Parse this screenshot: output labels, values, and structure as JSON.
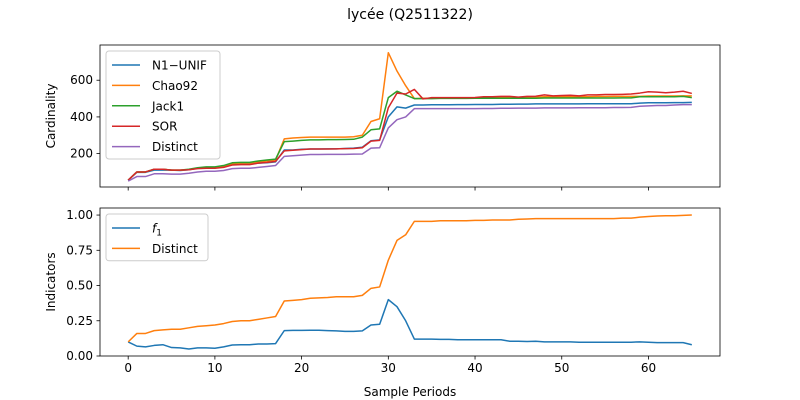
{
  "figure": {
    "title": "lycée (Q2511322)"
  },
  "chart_data": [
    {
      "type": "line",
      "title": "",
      "xlabel": "",
      "ylabel": "Cardinality",
      "xlim": [
        -3.25,
        68.25
      ],
      "ylim": [
        18,
        792
      ],
      "xticks": [
        0,
        10,
        20,
        30,
        40,
        50,
        60
      ],
      "xtick_labels": [
        "",
        "",
        "",
        "",
        "",
        "",
        ""
      ],
      "yticks": [
        200,
        400,
        600
      ],
      "ytick_labels": [
        "200",
        "400",
        "600"
      ],
      "grid": false,
      "legend_position": "upper-left",
      "series": [
        {
          "name": "N1−UNIF",
          "color": "#1f77b4",
          "values": [
            55,
            98,
            98,
            110,
            110,
            110,
            108,
            112,
            120,
            122,
            122,
            128,
            140,
            143,
            143,
            148,
            150,
            155,
            220,
            220,
            224,
            225,
            225,
            226,
            226,
            228,
            230,
            235,
            270,
            275,
            400,
            455,
            448,
            465,
            465,
            466,
            466,
            466,
            467,
            467,
            468,
            468,
            468,
            469,
            469,
            470,
            470,
            471,
            471,
            471,
            471,
            471,
            471,
            472,
            472,
            472,
            472,
            472,
            472,
            475,
            477,
            477,
            477,
            478,
            478,
            479
          ]
        },
        {
          "name": "Chao92",
          "color": "#ff7f0e",
          "values": [
            55,
            100,
            100,
            115,
            115,
            110,
            110,
            113,
            120,
            125,
            125,
            130,
            145,
            148,
            148,
            155,
            160,
            165,
            280,
            285,
            288,
            290,
            290,
            290,
            290,
            290,
            292,
            300,
            375,
            390,
            750,
            650,
            570,
            500,
            502,
            502,
            502,
            503,
            503,
            504,
            504,
            505,
            505,
            506,
            506,
            507,
            508,
            508,
            510,
            510,
            510,
            510,
            510,
            510,
            511,
            511,
            512,
            512,
            512,
            512,
            514,
            514,
            514,
            514,
            515,
            515
          ]
        },
        {
          "name": "Jack1",
          "color": "#2ca02c",
          "values": [
            55,
            100,
            100,
            115,
            115,
            110,
            110,
            115,
            123,
            128,
            128,
            135,
            150,
            152,
            152,
            160,
            165,
            170,
            265,
            268,
            272,
            275,
            275,
            276,
            276,
            277,
            278,
            290,
            330,
            335,
            505,
            540,
            520,
            500,
            500,
            500,
            501,
            501,
            501,
            501,
            502,
            502,
            502,
            502,
            502,
            502,
            502,
            502,
            503,
            503,
            503,
            503,
            503,
            503,
            503,
            503,
            503,
            504,
            504,
            510,
            510,
            510,
            510,
            510,
            512,
            505
          ]
        },
        {
          "name": "SOR",
          "color": "#d62728",
          "values": [
            55,
            100,
            100,
            115,
            115,
            110,
            110,
            112,
            118,
            120,
            120,
            125,
            138,
            140,
            140,
            148,
            152,
            158,
            215,
            218,
            222,
            225,
            225,
            225,
            226,
            227,
            228,
            232,
            268,
            272,
            450,
            530,
            525,
            550,
            498,
            505,
            505,
            505,
            505,
            505,
            506,
            510,
            510,
            512,
            512,
            508,
            512,
            513,
            520,
            515,
            517,
            518,
            515,
            520,
            520,
            522,
            522,
            523,
            525,
            530,
            537,
            535,
            532,
            535,
            540,
            528
          ]
        },
        {
          "name": "Distinct",
          "color": "#9467bd",
          "values": [
            50,
            75,
            75,
            90,
            90,
            88,
            88,
            93,
            100,
            104,
            104,
            108,
            118,
            120,
            120,
            125,
            130,
            135,
            185,
            188,
            192,
            195,
            195,
            196,
            196,
            196,
            197,
            198,
            230,
            232,
            340,
            385,
            400,
            445,
            445,
            445,
            445,
            445,
            445,
            445,
            445,
            446,
            446,
            447,
            447,
            448,
            448,
            448,
            449,
            449,
            449,
            449,
            450,
            450,
            450,
            450,
            451,
            451,
            452,
            458,
            460,
            462,
            462,
            465,
            467,
            467
          ]
        }
      ]
    },
    {
      "type": "line",
      "title": "",
      "xlabel": "Sample Periods",
      "ylabel": "Indicators",
      "xlim": [
        -3.25,
        68.25
      ],
      "ylim": [
        0,
        1.05
      ],
      "xticks": [
        0,
        10,
        20,
        30,
        40,
        50,
        60
      ],
      "xtick_labels": [
        "0",
        "10",
        "20",
        "30",
        "40",
        "50",
        "60"
      ],
      "yticks": [
        0.0,
        0.25,
        0.5,
        0.75,
        1.0
      ],
      "ytick_labels": [
        "0.00",
        "0.25",
        "0.50",
        "0.75",
        "1.00"
      ],
      "grid": false,
      "legend_position": "upper-left",
      "series": [
        {
          "name": "f",
          "name_subscript": "1",
          "color": "#1f77b4",
          "values": [
            0.1,
            0.07,
            0.065,
            0.075,
            0.08,
            0.06,
            0.058,
            0.05,
            0.058,
            0.058,
            0.055,
            0.065,
            0.078,
            0.08,
            0.08,
            0.085,
            0.085,
            0.088,
            0.18,
            0.182,
            0.182,
            0.183,
            0.183,
            0.18,
            0.178,
            0.175,
            0.175,
            0.178,
            0.22,
            0.225,
            0.4,
            0.35,
            0.25,
            0.12,
            0.12,
            0.12,
            0.118,
            0.118,
            0.115,
            0.115,
            0.115,
            0.115,
            0.115,
            0.115,
            0.105,
            0.105,
            0.103,
            0.105,
            0.1,
            0.1,
            0.1,
            0.1,
            0.098,
            0.098,
            0.098,
            0.098,
            0.098,
            0.098,
            0.098,
            0.1,
            0.098,
            0.095,
            0.095,
            0.095,
            0.095,
            0.08
          ]
        },
        {
          "name": "Distinct",
          "color": "#ff7f0e",
          "values": [
            0.1,
            0.16,
            0.16,
            0.18,
            0.185,
            0.19,
            0.19,
            0.2,
            0.21,
            0.215,
            0.22,
            0.23,
            0.245,
            0.25,
            0.25,
            0.26,
            0.27,
            0.28,
            0.39,
            0.395,
            0.4,
            0.41,
            0.412,
            0.415,
            0.42,
            0.42,
            0.42,
            0.43,
            0.48,
            0.49,
            0.68,
            0.82,
            0.86,
            0.955,
            0.955,
            0.955,
            0.96,
            0.96,
            0.96,
            0.96,
            0.962,
            0.962,
            0.965,
            0.965,
            0.965,
            0.97,
            0.972,
            0.975,
            0.975,
            0.975,
            0.975,
            0.975,
            0.975,
            0.975,
            0.975,
            0.975,
            0.975,
            0.978,
            0.978,
            0.985,
            0.99,
            0.993,
            0.995,
            0.995,
            0.998,
            1.0
          ]
        }
      ]
    }
  ]
}
